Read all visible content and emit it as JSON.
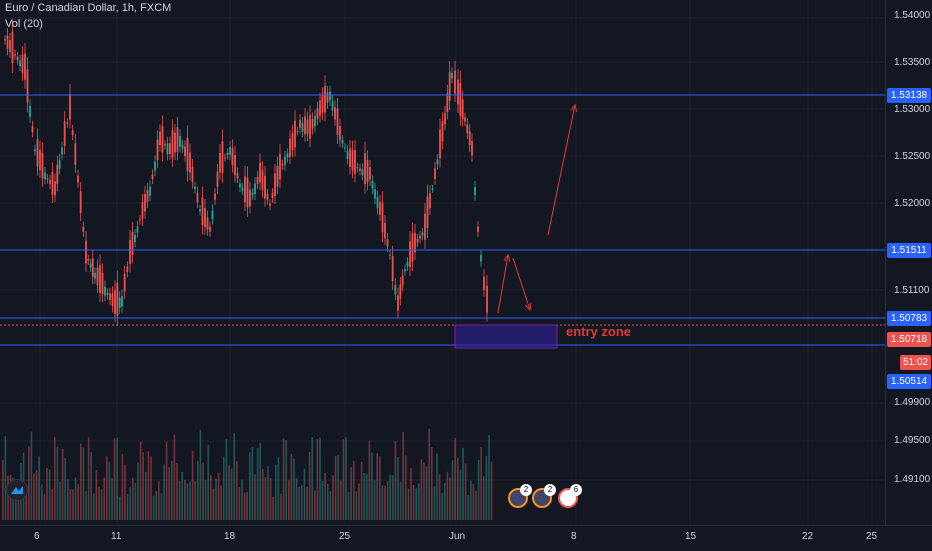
{
  "legend": {
    "symbol": "Euro / Canadian Dollar, 1h, FXCM",
    "volume": "Vol (20)"
  },
  "price_axis": {
    "labels": [
      "1.54000",
      "1.53500",
      "1.53000",
      "1.52500",
      "1.52000",
      "1.51100",
      "1.49900",
      "1.49500",
      "1.49100"
    ],
    "tags": [
      {
        "text": "1.53138",
        "color": "#2962ff"
      },
      {
        "text": "1.51511",
        "color": "#2962ff"
      },
      {
        "text": "1.50783",
        "color": "#2962ff"
      },
      {
        "text": "1.50718",
        "color": "#ef5350"
      },
      {
        "text": "51:02",
        "color": "#ef5350"
      },
      {
        "text": "1.50514",
        "color": "#2962ff"
      }
    ]
  },
  "time_axis": {
    "labels": [
      "6",
      "11",
      "18",
      "25",
      "Jun",
      "8",
      "15",
      "22",
      "25"
    ]
  },
  "annotations": {
    "entry_zone_label": "entry zone"
  },
  "events": [
    {
      "count": "2",
      "icon": "flag-icon"
    },
    {
      "count": "2",
      "icon": "flag-icon"
    },
    {
      "count": "6",
      "icon": "flag-icon"
    }
  ],
  "colors": {
    "background": "#131722",
    "up_candle": "#26a69a",
    "down_candle": "#ef5350",
    "horizontal_line": "#2962ff",
    "entry_zone_border": "#7b1fa2",
    "entry_zone_fill": "#2d1fa2",
    "arrow": "#e53935"
  }
}
